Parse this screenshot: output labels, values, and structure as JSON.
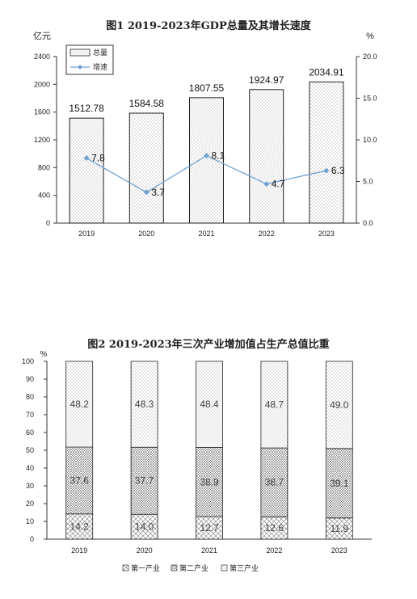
{
  "chart_data": [
    {
      "type": "bar",
      "title": "图1 2019-2023年GDP总量及其增长速度",
      "categories": [
        "2019",
        "2020",
        "2021",
        "2022",
        "2023"
      ],
      "ylabel_left": "亿元",
      "ylabel_right": "%",
      "ylim_left": [
        0,
        2400
      ],
      "ylim_right": [
        0,
        20
      ],
      "yticks_left": [
        "0",
        "400",
        "800",
        "1200",
        "1600",
        "2000",
        "2400"
      ],
      "yticks_right": [
        "0.0",
        "5.0",
        "10.0",
        "15.0",
        "20.0"
      ],
      "legend": {
        "position": "top-left",
        "items": [
          "总量",
          "增速"
        ]
      },
      "series": [
        {
          "name": "总量",
          "type": "bar",
          "axis": "left",
          "values": [
            1512.78,
            1584.58,
            1807.55,
            1924.97,
            2034.91
          ],
          "labels": [
            "1512.78",
            "1584.58",
            "1807.55",
            "1924.97",
            "2034.91"
          ]
        },
        {
          "name": "增速",
          "type": "line",
          "axis": "right",
          "values": [
            7.8,
            3.7,
            8.1,
            4.7,
            6.3
          ],
          "labels": [
            "7.8",
            "3.7",
            "8.1",
            "4.7",
            "6.3"
          ],
          "color": "#6fa3d3"
        }
      ]
    },
    {
      "type": "bar",
      "stacked": true,
      "title": "图2 2019-2023年三次产业增加值占生产总值比重",
      "categories": [
        "2019",
        "2020",
        "2021",
        "2022",
        "2023"
      ],
      "ylabel": "%",
      "ylim": [
        0,
        100
      ],
      "yticks": [
        "0",
        "10",
        "20",
        "30",
        "40",
        "50",
        "60",
        "70",
        "80",
        "90",
        "100"
      ],
      "legend": {
        "position": "bottom",
        "items": [
          "第一产业",
          "第二产业",
          "第三产业"
        ]
      },
      "series": [
        {
          "name": "第一产业",
          "values": [
            14.2,
            14.0,
            12.7,
            12.6,
            11.9
          ],
          "labels": [
            "14.2",
            "14.0",
            "12.7",
            "12.6",
            "11.9"
          ]
        },
        {
          "name": "第二产业",
          "values": [
            37.6,
            37.7,
            38.9,
            38.7,
            39.1
          ],
          "labels": [
            "37.6",
            "37.7",
            "38.9",
            "38.7",
            "39.1"
          ]
        },
        {
          "name": "第三产业",
          "values": [
            48.2,
            48.3,
            48.4,
            48.7,
            49.0
          ],
          "labels": [
            "48.2",
            "48.3",
            "48.4",
            "48.7",
            "49.0"
          ]
        }
      ]
    }
  ]
}
